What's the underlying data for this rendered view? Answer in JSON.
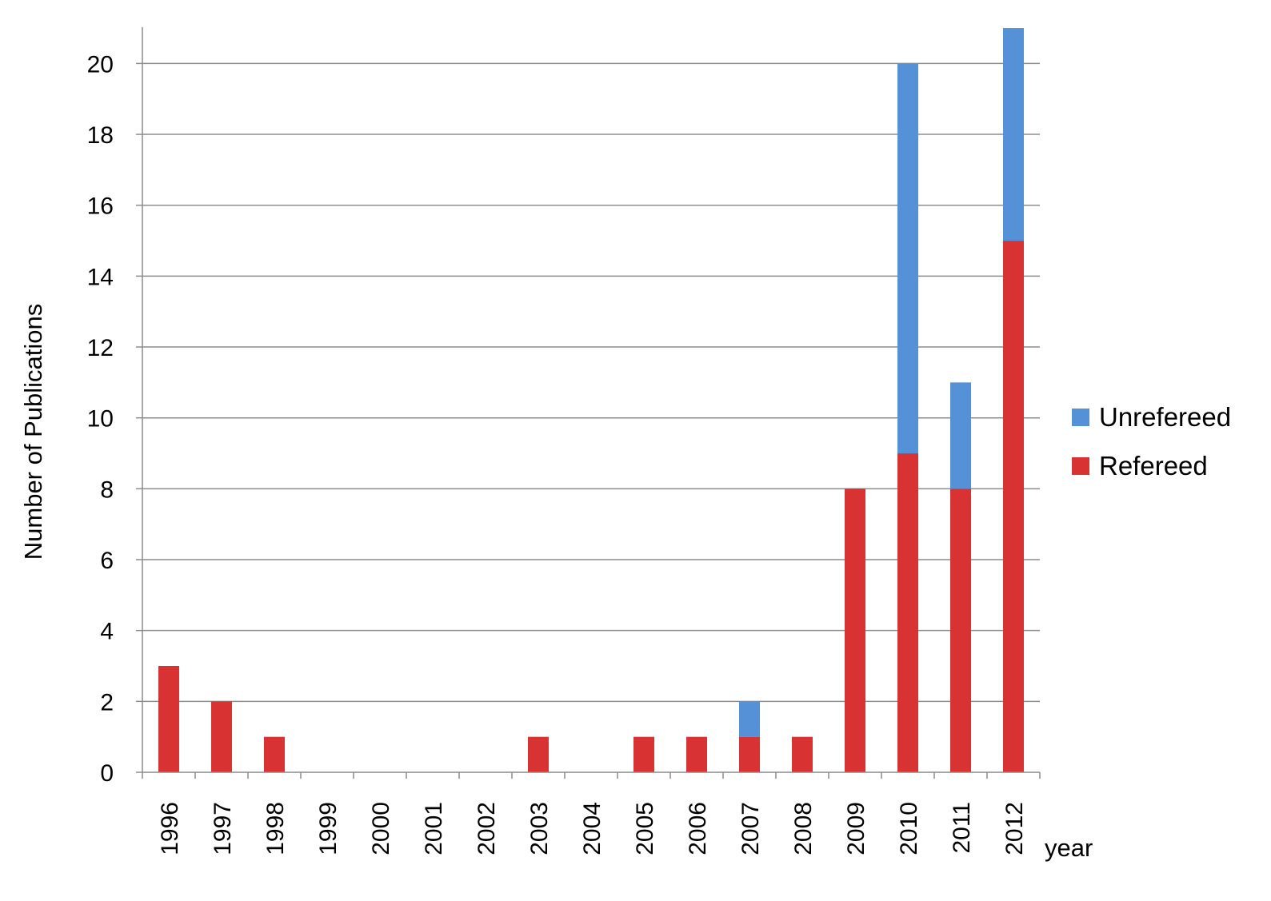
{
  "chart_data": {
    "type": "bar",
    "stacked": true,
    "title": "",
    "xlabel": "year",
    "ylabel": "Number of Publications",
    "ylim": [
      0,
      21
    ],
    "yticks": [
      0,
      2,
      4,
      6,
      8,
      10,
      12,
      14,
      16,
      18,
      20
    ],
    "grid": true,
    "legend_position": "right",
    "categories": [
      "1996",
      "1997",
      "1998",
      "1999",
      "2000",
      "2001",
      "2002",
      "2003",
      "2004",
      "2005",
      "2006",
      "2007",
      "2008",
      "2009",
      "2010",
      "2011",
      "2012"
    ],
    "series": [
      {
        "name": "Refereed",
        "color": "#d93232",
        "values": [
          3,
          2,
          1,
          0,
          0,
          0,
          0,
          1,
          0,
          1,
          1,
          1,
          1,
          8,
          9,
          8,
          15
        ]
      },
      {
        "name": "Unrefereed",
        "color": "#5591d6",
        "values": [
          0,
          0,
          0,
          0,
          0,
          0,
          0,
          0,
          0,
          0,
          0,
          1,
          0,
          0,
          11,
          3,
          6
        ]
      }
    ],
    "legend_order": [
      "Unrefereed",
      "Refereed"
    ]
  }
}
